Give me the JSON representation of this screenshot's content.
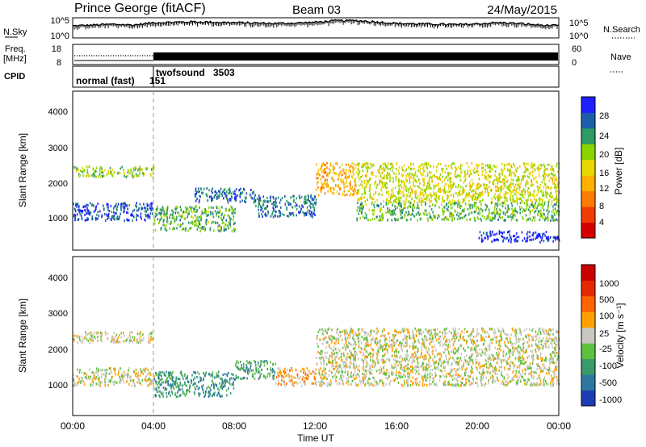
{
  "header": {
    "station": "Prince George (fitACF)",
    "beam": "Beam 03",
    "date": "24/May/2015"
  },
  "left_labels": {
    "nsky": "N.Sky",
    "freq_line1": "Freq.",
    "freq_line2": "[MHz]",
    "cpid": "CPID"
  },
  "right_labels": {
    "nsearch": "N.Search",
    "nave": "Nave"
  },
  "noise_axis": {
    "left_ticks": [
      "10^5",
      "10^0"
    ],
    "right_ticks": [
      "10^5",
      "10^0"
    ]
  },
  "freq_axis": {
    "left_ticks": [
      "18",
      "8"
    ],
    "right_ticks": [
      "60",
      "0"
    ]
  },
  "cpid_modes": [
    {
      "label": "normal (fast)",
      "id": "151",
      "start_hour": 0
    },
    {
      "label": "twofsound",
      "id": "3503",
      "start_hour": 4
    }
  ],
  "time_axis": {
    "label": "Time UT",
    "ticks": [
      "00:00",
      "04:00",
      "08:00",
      "12:00",
      "16:00",
      "20:00",
      "00:00"
    ],
    "range_hours": [
      0,
      24
    ]
  },
  "range_axis": {
    "label": "Slant Range [km]",
    "ticks": [
      "1000",
      "2000",
      "3000",
      "4000"
    ],
    "range_km": [
      180,
      4600
    ]
  },
  "power_colorbar": {
    "title": "Power [dB]",
    "ticks": [
      "28",
      "24",
      "20",
      "16",
      "12",
      "8",
      "4"
    ],
    "colors": [
      "#d40000",
      "#f03c00",
      "#ff7a00",
      "#ffb000",
      "#e8d800",
      "#88d400",
      "#2e9a64",
      "#1c5fa8",
      "#2020ff"
    ]
  },
  "velocity_colorbar": {
    "title": "Velocity [m s⁻¹]",
    "ticks": [
      "1000",
      "500",
      "100",
      "25",
      "-25",
      "-100",
      "-500",
      "-1000"
    ],
    "colors": [
      "#1c3cb4",
      "#2e78a0",
      "#3a9a6a",
      "#60c040",
      "#c8c8c0",
      "#ffa000",
      "#ff6400",
      "#e62800",
      "#cc0000"
    ]
  },
  "chart_data": [
    {
      "type": "line",
      "title": "N.Sky / N.Search",
      "x": [
        0,
        1,
        2,
        3,
        4,
        5,
        6,
        7,
        8,
        9,
        10,
        11,
        12,
        13,
        14,
        15,
        16,
        17,
        18,
        19,
        20,
        21,
        22,
        23,
        24
      ],
      "series": [
        {
          "name": "N.Sky",
          "values": [
            3.0,
            3.2,
            3.4,
            3.2,
            3.8,
            3.9,
            4.0,
            3.9,
            3.8,
            3.7,
            3.6,
            3.7,
            3.9,
            4.3,
            4.3,
            4.0,
            3.6,
            3.5,
            3.4,
            3.3,
            3.5,
            3.8,
            3.6,
            3.2,
            3.0
          ]
        }
      ],
      "ylim": [
        0,
        5
      ]
    },
    {
      "type": "line",
      "title": "Freq. / Nave",
      "x": [
        0,
        4,
        4,
        24
      ],
      "series": [
        {
          "name": "Freq. [MHz]",
          "values": [
            12,
            12,
            11,
            11
          ]
        }
      ],
      "ylim": [
        8,
        18
      ]
    },
    {
      "type": "heatmap",
      "title": "Power [dB]",
      "xlabel": "Time UT",
      "ylabel": "Slant Range [km]",
      "xlim": [
        0,
        24
      ],
      "ylim": [
        180,
        4600
      ],
      "clim": [
        0,
        30
      ],
      "regions": [
        {
          "t": [
            0,
            4
          ],
          "r": [
            1000,
            1500
          ],
          "v": 26
        },
        {
          "t": [
            0,
            4
          ],
          "r": [
            2200,
            2500
          ],
          "v": 18
        },
        {
          "t": [
            4,
            8
          ],
          "r": [
            700,
            1400
          ],
          "v": 20
        },
        {
          "t": [
            6,
            9
          ],
          "r": [
            1500,
            1900
          ],
          "v": 24
        },
        {
          "t": [
            9,
            12
          ],
          "r": [
            1100,
            1700
          ],
          "v": 24
        },
        {
          "t": [
            12,
            14
          ],
          "r": [
            1700,
            2600
          ],
          "v": 12
        },
        {
          "t": [
            14,
            24
          ],
          "r": [
            1500,
            2600
          ],
          "v": 16
        },
        {
          "t": [
            14,
            24
          ],
          "r": [
            1000,
            1500
          ],
          "v": 20
        },
        {
          "t": [
            20,
            24
          ],
          "r": [
            400,
            700
          ],
          "v": 28
        }
      ]
    },
    {
      "type": "heatmap",
      "title": "Velocity [m s⁻¹]",
      "xlabel": "Time UT",
      "ylabel": "Slant Range [km]",
      "xlim": [
        0,
        24
      ],
      "ylim": [
        180,
        4600
      ],
      "clim": [
        -1000,
        1000
      ],
      "regions": [
        {
          "t": [
            0,
            4
          ],
          "r": [
            1000,
            1500
          ],
          "v": 0
        },
        {
          "t": [
            0,
            4
          ],
          "r": [
            2200,
            2500
          ],
          "v": 0
        },
        {
          "t": [
            4,
            8
          ],
          "r": [
            700,
            1400
          ],
          "v": -500
        },
        {
          "t": [
            8,
            10
          ],
          "r": [
            1200,
            1700
          ],
          "v": -400
        },
        {
          "t": [
            10,
            12
          ],
          "r": [
            1000,
            1500
          ],
          "v": 200
        },
        {
          "t": [
            12,
            24
          ],
          "r": [
            1000,
            2600
          ],
          "v": 0
        }
      ]
    }
  ]
}
